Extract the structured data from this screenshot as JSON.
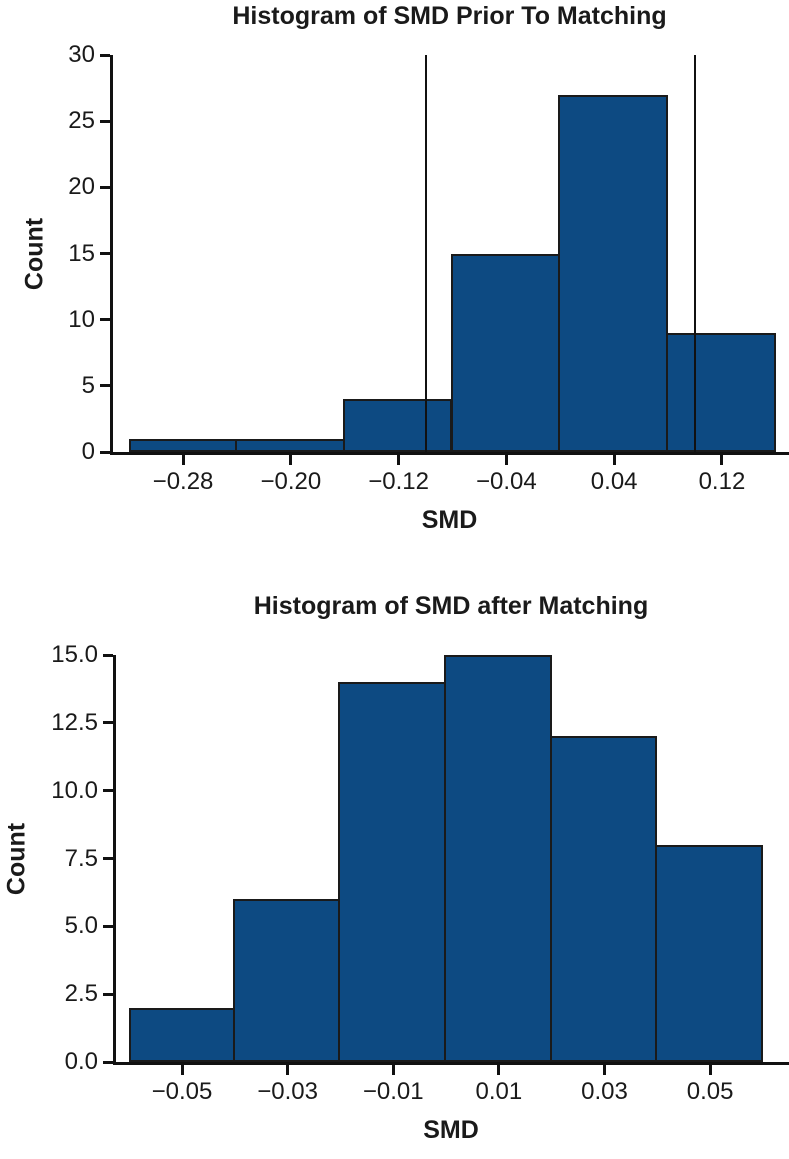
{
  "page": {
    "background_color": "#ffffff",
    "text_color": "#1a1a1a",
    "spine_color": "#111111"
  },
  "chart_data": [
    {
      "type": "bar",
      "subtype": "histogram",
      "title": "Histogram of SMD Prior To Matching",
      "xlabel": "SMD",
      "ylabel": "Count",
      "bin_edges": [
        -0.32,
        -0.24,
        -0.16,
        -0.08,
        0.0,
        0.08,
        0.16
      ],
      "counts": [
        1,
        1,
        4,
        15,
        27,
        9
      ],
      "xtick_values": [
        -0.28,
        -0.2,
        -0.12,
        -0.04,
        0.04,
        0.12
      ],
      "xtick_labels": [
        "−0.28",
        "−0.20",
        "−0.12",
        "−0.04",
        "0.04",
        "0.12"
      ],
      "ytick_values": [
        0,
        5,
        10,
        15,
        20,
        25,
        30
      ],
      "ytick_labels": [
        "0",
        "5",
        "10",
        "15",
        "20",
        "25",
        "30"
      ],
      "xlim": [
        -0.332,
        0.172
      ],
      "ylim": [
        0,
        30
      ],
      "ref_lines": [
        -0.1,
        0.1
      ],
      "grid": false,
      "legend": "none",
      "bar_color": "#0d4a82",
      "bar_edge_color": "#1a1a1a"
    },
    {
      "type": "bar",
      "subtype": "histogram",
      "title": "Histogram of SMD after Matching",
      "xlabel": "SMD",
      "ylabel": "Count",
      "bin_edges": [
        -0.06,
        -0.04,
        -0.02,
        0.0,
        0.02,
        0.04,
        0.06
      ],
      "counts": [
        2,
        6,
        14,
        15,
        12,
        8
      ],
      "xtick_values": [
        -0.05,
        -0.03,
        -0.01,
        0.01,
        0.03,
        0.05
      ],
      "xtick_labels": [
        "−0.05",
        "−0.03",
        "−0.01",
        "0.01",
        "0.03",
        "0.05"
      ],
      "ytick_values": [
        0,
        2.5,
        5,
        7.5,
        10,
        12.5,
        15
      ],
      "ytick_labels": [
        "0.0",
        "2.5",
        "5.0",
        "7.5",
        "10.0",
        "12.5",
        "15.0"
      ],
      "xlim": [
        -0.0625,
        0.0655
      ],
      "ylim": [
        0,
        15
      ],
      "ref_lines": [],
      "grid": false,
      "legend": "none",
      "bar_color": "#0d4a82",
      "bar_edge_color": "#1a1a1a"
    }
  ]
}
